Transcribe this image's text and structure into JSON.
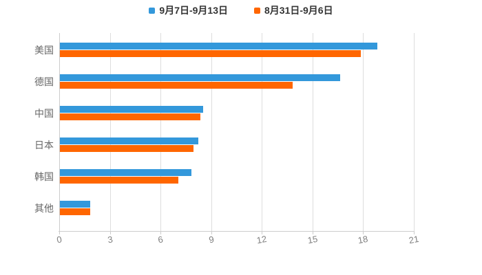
{
  "legend": {
    "items": [
      {
        "label": "9月7日-9月13日",
        "color": "#3398DB"
      },
      {
        "label": "8月31日-9月6日",
        "color": "#FF6600"
      }
    ]
  },
  "chart_data": {
    "type": "bar",
    "orientation": "horizontal",
    "title": "",
    "xlabel": "",
    "ylabel": "",
    "categories": [
      "美国",
      "德国",
      "中国",
      "日本",
      "韩国",
      "其他"
    ],
    "series": [
      {
        "name": "9月7日-9月13日",
        "color": "#3398DB",
        "values": [
          18.8,
          16.6,
          8.5,
          8.2,
          7.8,
          1.8
        ]
      },
      {
        "name": "8月31日-9月6日",
        "color": "#FF6600",
        "values": [
          17.8,
          13.8,
          8.3,
          7.9,
          7.0,
          1.8
        ]
      }
    ],
    "xlim": [
      0,
      21
    ],
    "x_ticks": [
      0,
      3,
      6,
      9,
      12,
      15,
      18,
      21
    ],
    "grid": true,
    "legend_position": "top-center"
  },
  "colors": {
    "background": "#FFFFFF",
    "grid": "#DDDDDD",
    "axis": "#CCCCCC",
    "tick_label": "#808080",
    "category_label": "#666666",
    "legend_text": "#333333"
  }
}
